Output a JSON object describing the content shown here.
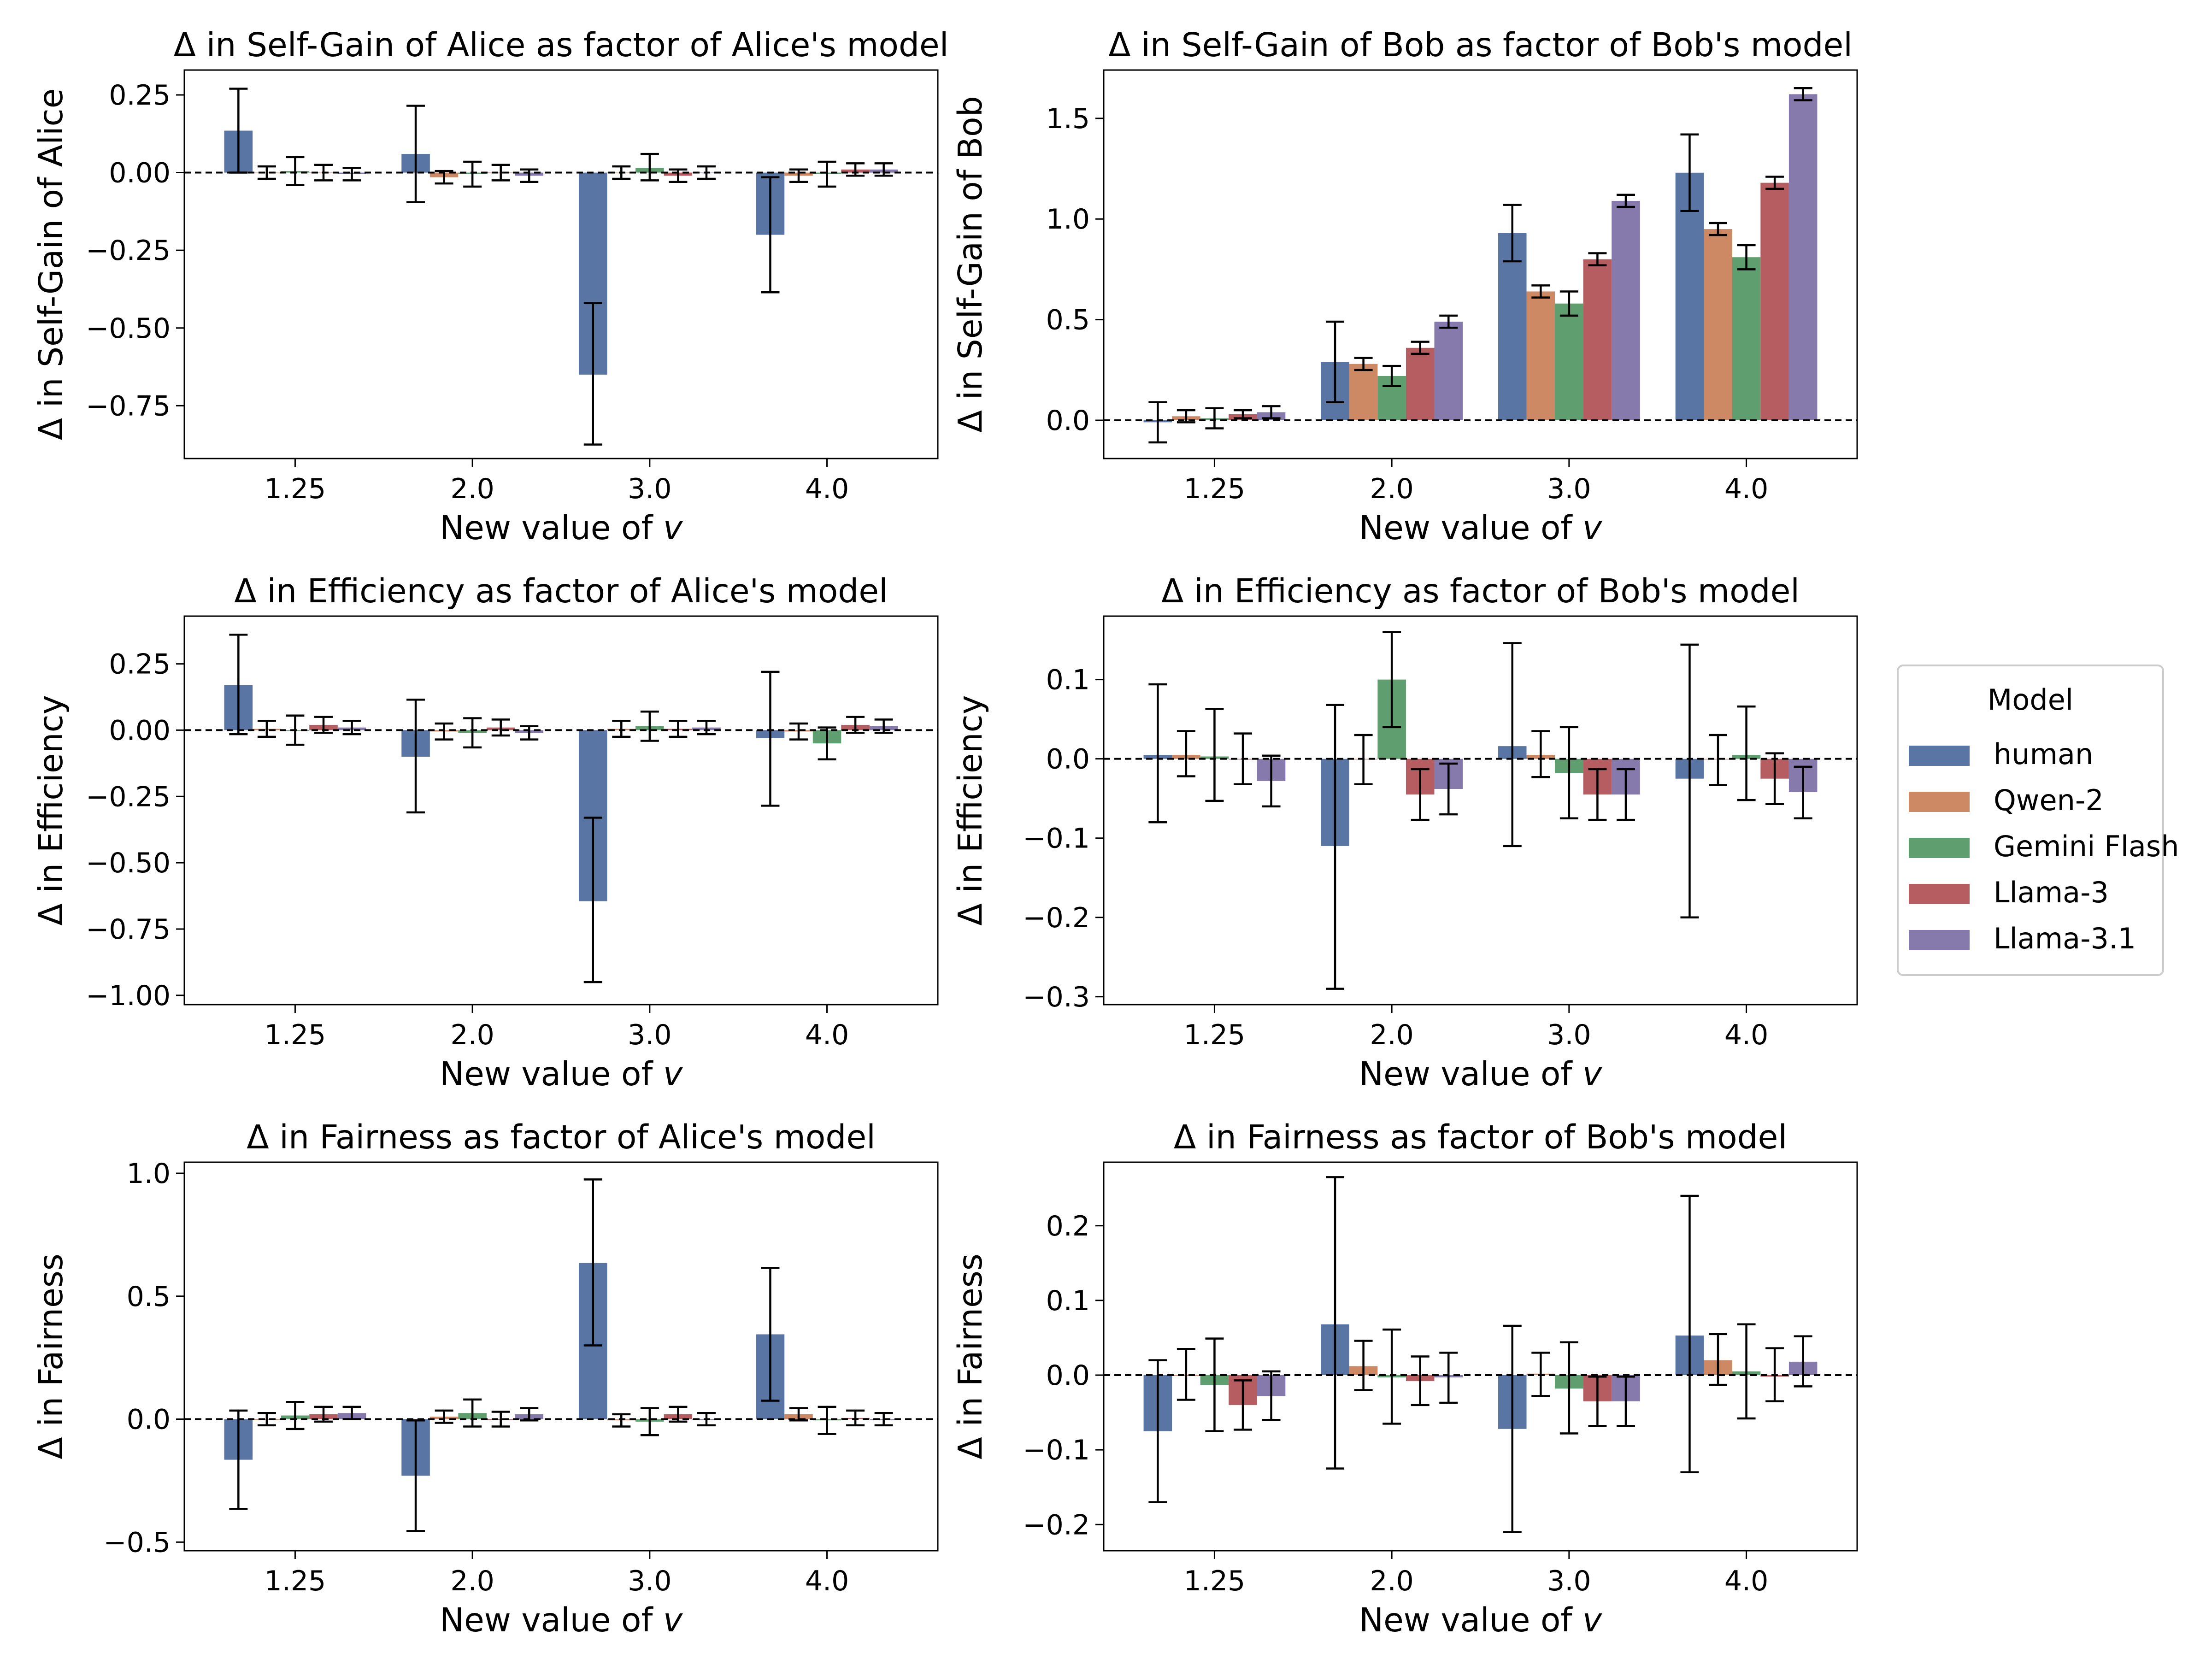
{
  "legend": {
    "title": "Model",
    "items": [
      {
        "label": "human",
        "color": "#5875a4"
      },
      {
        "label": "Qwen-2",
        "color": "#cc8963"
      },
      {
        "label": "Gemini Flash",
        "color": "#5f9e6e"
      },
      {
        "label": "Llama-3",
        "color": "#b55d60"
      },
      {
        "label": "Llama-3.1",
        "color": "#857aab"
      }
    ]
  },
  "chart_data": [
    {
      "type": "bar",
      "title": "Δ in Self-Gain of Alice as factor of Alice's model",
      "xlabel_prefix": "New value of ",
      "xlabel_var": "v",
      "ylabel": "Δ in Self-Gain of Alice",
      "categories": [
        "1.25",
        "2.0",
        "3.0",
        "4.0"
      ],
      "ylim": [
        -0.92,
        0.33
      ],
      "yticks": [
        0.25,
        0.0,
        -0.25,
        -0.5,
        -0.75
      ],
      "ytick_labels": [
        "0.25",
        "0.00",
        "−0.25",
        "−0.50",
        "−0.75"
      ],
      "series": [
        {
          "name": "human",
          "values": [
            0.135,
            0.06,
            -0.65,
            -0.2
          ],
          "err_low": [
            0.0,
            -0.095,
            -0.875,
            -0.385
          ],
          "err_high": [
            0.27,
            0.215,
            -0.42,
            -0.015
          ]
        },
        {
          "name": "Qwen-2",
          "values": [
            0.0,
            -0.015,
            0.0,
            -0.01
          ],
          "err_low": [
            -0.02,
            -0.035,
            -0.02,
            -0.03
          ],
          "err_high": [
            0.02,
            0.005,
            0.02,
            0.01
          ]
        },
        {
          "name": "Gemini Flash",
          "values": [
            0.005,
            -0.005,
            0.015,
            -0.005
          ],
          "err_low": [
            -0.04,
            -0.045,
            -0.025,
            -0.045
          ],
          "err_high": [
            0.05,
            0.035,
            0.06,
            0.035
          ]
        },
        {
          "name": "Llama-3",
          "values": [
            0.0,
            0.0,
            -0.01,
            0.01
          ],
          "err_low": [
            -0.025,
            -0.025,
            -0.03,
            -0.01
          ],
          "err_high": [
            0.025,
            0.025,
            0.01,
            0.03
          ]
        },
        {
          "name": "Llama-3.1",
          "values": [
            -0.005,
            -0.01,
            0.0,
            0.01
          ],
          "err_low": [
            -0.025,
            -0.03,
            -0.02,
            -0.01
          ],
          "err_high": [
            0.015,
            0.01,
            0.02,
            0.03
          ]
        }
      ]
    },
    {
      "type": "bar",
      "title": "Δ in Self-Gain of Bob as factor of Bob's model",
      "xlabel_prefix": "New value of ",
      "xlabel_var": "v",
      "ylabel": "Δ in Self-Gain of Bob",
      "categories": [
        "1.25",
        "2.0",
        "3.0",
        "4.0"
      ],
      "ylim": [
        -0.19,
        1.74
      ],
      "yticks": [
        0.0,
        0.5,
        1.0,
        1.5
      ],
      "ytick_labels": [
        "0.0",
        "0.5",
        "1.0",
        "1.5"
      ],
      "series": [
        {
          "name": "human",
          "values": [
            -0.01,
            0.29,
            0.93,
            1.23
          ],
          "err_low": [
            -0.11,
            0.09,
            0.79,
            1.04
          ],
          "err_high": [
            0.09,
            0.49,
            1.07,
            1.42
          ]
        },
        {
          "name": "Qwen-2",
          "values": [
            0.02,
            0.28,
            0.64,
            0.95
          ],
          "err_low": [
            -0.01,
            0.25,
            0.61,
            0.92
          ],
          "err_high": [
            0.05,
            0.31,
            0.67,
            0.98
          ]
        },
        {
          "name": "Gemini Flash",
          "values": [
            0.01,
            0.22,
            0.58,
            0.81
          ],
          "err_low": [
            -0.04,
            0.17,
            0.52,
            0.75
          ],
          "err_high": [
            0.06,
            0.27,
            0.64,
            0.87
          ]
        },
        {
          "name": "Llama-3",
          "values": [
            0.03,
            0.36,
            0.8,
            1.18
          ],
          "err_low": [
            0.01,
            0.33,
            0.77,
            1.15
          ],
          "err_high": [
            0.05,
            0.39,
            0.83,
            1.21
          ]
        },
        {
          "name": "Llama-3.1",
          "values": [
            0.04,
            0.49,
            1.09,
            1.62
          ],
          "err_low": [
            0.01,
            0.46,
            1.06,
            1.59
          ],
          "err_high": [
            0.07,
            0.52,
            1.12,
            1.65
          ]
        }
      ]
    },
    {
      "type": "bar",
      "title": "Δ in Efficiency as factor of Alice's model",
      "xlabel_prefix": "New value of ",
      "xlabel_var": "v",
      "ylabel": "Δ in Efficiency",
      "categories": [
        "1.25",
        "2.0",
        "3.0",
        "4.0"
      ],
      "ylim": [
        -1.035,
        0.43
      ],
      "yticks": [
        0.25,
        0.0,
        -0.25,
        -0.5,
        -0.75,
        -1.0
      ],
      "ytick_labels": [
        "0.25",
        "0.00",
        "−0.25",
        "−0.50",
        "−0.75",
        "−1.00"
      ],
      "series": [
        {
          "name": "human",
          "values": [
            0.17,
            -0.1,
            -0.645,
            -0.03
          ],
          "err_low": [
            -0.015,
            -0.31,
            -0.95,
            -0.285
          ],
          "err_high": [
            0.36,
            0.115,
            -0.33,
            0.22
          ]
        },
        {
          "name": "Qwen-2",
          "values": [
            0.005,
            -0.005,
            0.005,
            -0.005
          ],
          "err_low": [
            -0.025,
            -0.035,
            -0.025,
            -0.035
          ],
          "err_high": [
            0.035,
            0.025,
            0.035,
            0.025
          ]
        },
        {
          "name": "Gemini Flash",
          "values": [
            0.0,
            -0.01,
            0.015,
            -0.05
          ],
          "err_low": [
            -0.055,
            -0.065,
            -0.04,
            -0.11
          ],
          "err_high": [
            0.055,
            0.045,
            0.07,
            0.01
          ]
        },
        {
          "name": "Llama-3",
          "values": [
            0.02,
            0.01,
            0.005,
            0.02
          ],
          "err_low": [
            -0.01,
            -0.02,
            -0.025,
            -0.01
          ],
          "err_high": [
            0.05,
            0.04,
            0.035,
            0.05
          ]
        },
        {
          "name": "Llama-3.1",
          "values": [
            0.01,
            -0.01,
            0.01,
            0.015
          ],
          "err_low": [
            -0.015,
            -0.035,
            -0.015,
            -0.01
          ],
          "err_high": [
            0.035,
            0.015,
            0.035,
            0.04
          ]
        }
      ]
    },
    {
      "type": "bar",
      "title": "Δ in Efficiency as factor of Bob's model",
      "xlabel_prefix": "New value of ",
      "xlabel_var": "v",
      "ylabel": "Δ in Efficiency",
      "categories": [
        "1.25",
        "2.0",
        "3.0",
        "4.0"
      ],
      "ylim": [
        -0.31,
        0.18
      ],
      "yticks": [
        0.1,
        0.0,
        -0.1,
        -0.2,
        -0.3
      ],
      "ytick_labels": [
        "0.1",
        "0.0",
        "−0.1",
        "−0.2",
        "−0.3"
      ],
      "series": [
        {
          "name": "human",
          "values": [
            0.005,
            -0.11,
            0.016,
            -0.025
          ],
          "err_low": [
            -0.08,
            -0.29,
            -0.11,
            -0.2
          ],
          "err_high": [
            0.094,
            0.068,
            0.146,
            0.144
          ]
        },
        {
          "name": "Qwen-2",
          "values": [
            0.005,
            0.0,
            0.005,
            0.0
          ],
          "err_low": [
            -0.022,
            -0.032,
            -0.023,
            -0.033
          ],
          "err_high": [
            0.035,
            0.03,
            0.035,
            0.03
          ]
        },
        {
          "name": "Gemini Flash",
          "values": [
            0.003,
            0.1,
            -0.018,
            0.005
          ],
          "err_low": [
            -0.053,
            0.04,
            -0.075,
            -0.052
          ],
          "err_high": [
            0.063,
            0.16,
            0.04,
            0.066
          ]
        },
        {
          "name": "Llama-3",
          "values": [
            0.0,
            -0.045,
            -0.045,
            -0.025
          ],
          "err_low": [
            -0.032,
            -0.077,
            -0.077,
            -0.057
          ],
          "err_high": [
            0.032,
            -0.013,
            -0.013,
            0.007
          ]
        },
        {
          "name": "Llama-3.1",
          "values": [
            -0.028,
            -0.038,
            -0.045,
            -0.042
          ],
          "err_low": [
            -0.06,
            -0.07,
            -0.077,
            -0.075
          ],
          "err_high": [
            0.004,
            -0.006,
            -0.013,
            -0.01
          ]
        }
      ]
    },
    {
      "type": "bar",
      "title": "Δ in Fairness as factor of Alice's model",
      "xlabel_prefix": "New value of ",
      "xlabel_var": "v",
      "ylabel": "Δ in Fairness",
      "categories": [
        "1.25",
        "2.0",
        "3.0",
        "4.0"
      ],
      "ylim": [
        -0.535,
        1.045
      ],
      "yticks": [
        1.0,
        0.5,
        0.0,
        -0.5
      ],
      "ytick_labels": [
        "1.0",
        "0.5",
        "0.0",
        "−0.5"
      ],
      "series": [
        {
          "name": "human",
          "values": [
            -0.165,
            -0.23,
            0.635,
            0.345
          ],
          "err_low": [
            -0.365,
            -0.455,
            0.3,
            0.075
          ],
          "err_high": [
            0.035,
            -0.005,
            0.975,
            0.615
          ]
        },
        {
          "name": "Qwen-2",
          "values": [
            0.0,
            0.01,
            -0.005,
            0.02
          ],
          "err_low": [
            -0.025,
            -0.015,
            -0.03,
            -0.005
          ],
          "err_high": [
            0.025,
            0.035,
            0.02,
            0.045
          ]
        },
        {
          "name": "Gemini Flash",
          "values": [
            0.015,
            0.025,
            -0.01,
            -0.005
          ],
          "err_low": [
            -0.04,
            -0.03,
            -0.065,
            -0.06
          ],
          "err_high": [
            0.07,
            0.08,
            0.045,
            0.05
          ]
        },
        {
          "name": "Llama-3",
          "values": [
            0.02,
            0.0,
            0.02,
            0.005
          ],
          "err_low": [
            -0.01,
            -0.03,
            -0.01,
            -0.025
          ],
          "err_high": [
            0.05,
            0.03,
            0.05,
            0.035
          ]
        },
        {
          "name": "Llama-3.1",
          "values": [
            0.025,
            0.02,
            0.0,
            0.0
          ],
          "err_low": [
            0.0,
            -0.005,
            -0.025,
            -0.025
          ],
          "err_high": [
            0.05,
            0.045,
            0.025,
            0.025
          ]
        }
      ]
    },
    {
      "type": "bar",
      "title": "Δ in Fairness as factor of Bob's model",
      "xlabel_prefix": "New value of ",
      "xlabel_var": "v",
      "ylabel": "Δ in Fairness",
      "categories": [
        "1.25",
        "2.0",
        "3.0",
        "4.0"
      ],
      "ylim": [
        -0.235,
        0.285
      ],
      "yticks": [
        0.2,
        0.1,
        0.0,
        -0.1,
        -0.2
      ],
      "ytick_labels": [
        "0.2",
        "0.1",
        "0.0",
        "−0.1",
        "−0.2"
      ],
      "series": [
        {
          "name": "human",
          "values": [
            -0.075,
            0.068,
            -0.072,
            0.053
          ],
          "err_low": [
            -0.17,
            -0.125,
            -0.21,
            -0.13
          ],
          "err_high": [
            0.02,
            0.265,
            0.066,
            0.24
          ]
        },
        {
          "name": "Qwen-2",
          "values": [
            0.0,
            0.012,
            0.002,
            0.02
          ],
          "err_low": [
            -0.033,
            -0.02,
            -0.028,
            -0.013
          ],
          "err_high": [
            0.035,
            0.046,
            0.03,
            0.055
          ]
        },
        {
          "name": "Gemini Flash",
          "values": [
            -0.013,
            -0.003,
            -0.018,
            0.005
          ],
          "err_low": [
            -0.075,
            -0.065,
            -0.078,
            -0.058
          ],
          "err_high": [
            0.049,
            0.061,
            0.044,
            0.068
          ]
        },
        {
          "name": "Llama-3",
          "values": [
            -0.04,
            -0.008,
            -0.035,
            -0.002
          ],
          "err_low": [
            -0.073,
            -0.04,
            -0.068,
            -0.035
          ],
          "err_high": [
            -0.007,
            0.025,
            -0.002,
            0.036
          ]
        },
        {
          "name": "Llama-3.1",
          "values": [
            -0.028,
            -0.003,
            -0.035,
            0.018
          ],
          "err_low": [
            -0.06,
            -0.037,
            -0.068,
            -0.015
          ],
          "err_high": [
            0.005,
            0.03,
            -0.002,
            0.052
          ]
        }
      ]
    }
  ]
}
